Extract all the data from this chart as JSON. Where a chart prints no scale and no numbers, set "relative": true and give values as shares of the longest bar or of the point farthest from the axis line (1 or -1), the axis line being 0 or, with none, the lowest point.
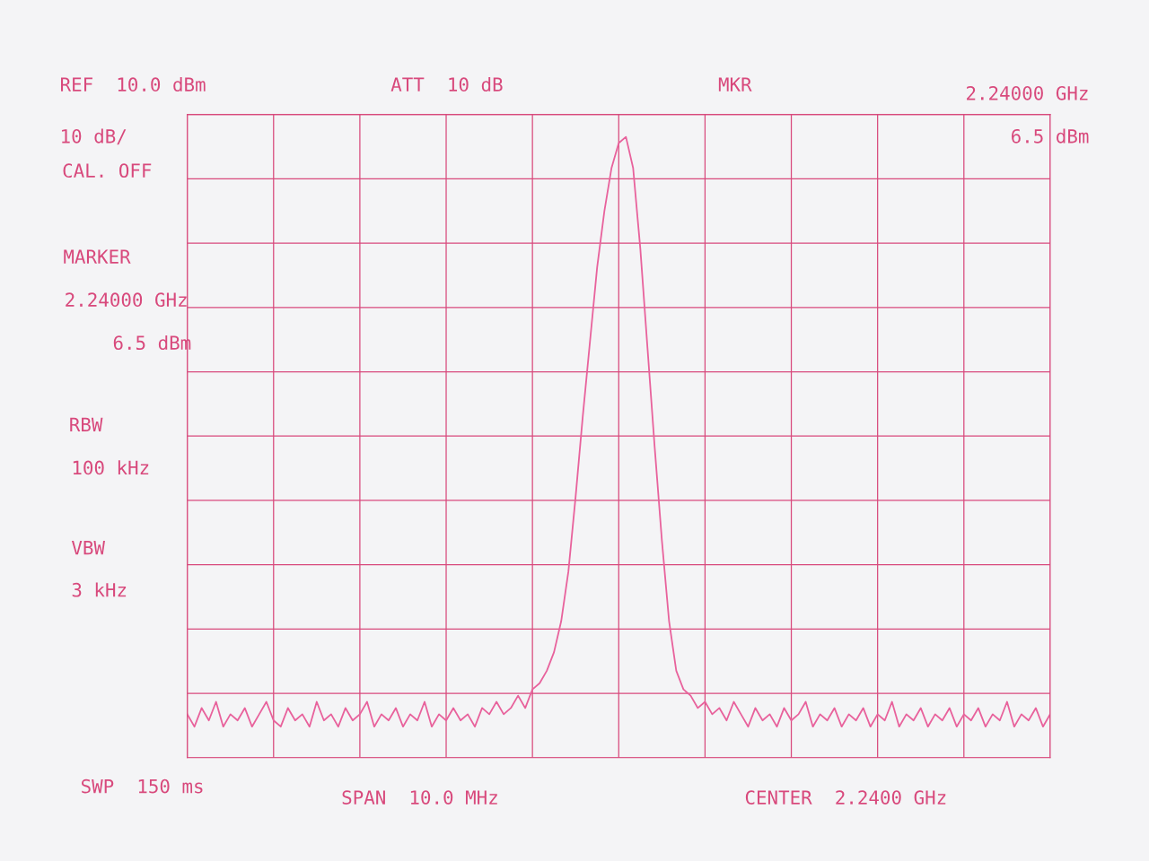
{
  "chart_data": {
    "type": "line",
    "relative": true,
    "grid": true,
    "legend": false,
    "categories": [
      null,
      null,
      null,
      null,
      null,
      null,
      null,
      null,
      null,
      null,
      null,
      null,
      null,
      null,
      null,
      null,
      null,
      null,
      null,
      null,
      null,
      null,
      null,
      null,
      null,
      null,
      null,
      null,
      null,
      null,
      null,
      null,
      null,
      null,
      null,
      null,
      null,
      null,
      null,
      null,
      null,
      null,
      null,
      null,
      null,
      null,
      null,
      null,
      null,
      null,
      null,
      null,
      null,
      null,
      null,
      null,
      null,
      null,
      null,
      null,
      null,
      null,
      null,
      null,
      null,
      null,
      null,
      null,
      null,
      null,
      null,
      null,
      null,
      null,
      null,
      null,
      null,
      null,
      null,
      null,
      null,
      null,
      null,
      null,
      null,
      null,
      null,
      null,
      null,
      null,
      null,
      null,
      null,
      null,
      null,
      null,
      null,
      null,
      null,
      null,
      null,
      null,
      null,
      null,
      null,
      null,
      null,
      null,
      null,
      null,
      null,
      null,
      null,
      null,
      null,
      null,
      null,
      null,
      null,
      null,
      null
    ],
    "series": [
      {
        "type": "line",
        "color": "#e8629c",
        "marker": "none",
        "line_style": "solid",
        "values": [
          0.07,
          0.05,
          0.08,
          0.06,
          0.09,
          0.05,
          0.07,
          0.06,
          0.08,
          0.05,
          0.07,
          0.09,
          0.06,
          0.05,
          0.08,
          0.06,
          0.07,
          0.05,
          0.09,
          0.06,
          0.07,
          0.05,
          0.08,
          0.06,
          0.07,
          0.09,
          0.05,
          0.07,
          0.06,
          0.08,
          0.05,
          0.07,
          0.06,
          0.09,
          0.05,
          0.07,
          0.06,
          0.08,
          0.06,
          0.07,
          0.05,
          0.08,
          0.07,
          0.09,
          0.07,
          0.08,
          0.1,
          0.08,
          0.11,
          0.12,
          0.14,
          0.17,
          0.22,
          0.3,
          0.42,
          0.55,
          0.67,
          0.79,
          0.88,
          0.95,
          0.99,
          1.0,
          0.95,
          0.82,
          0.66,
          0.5,
          0.35,
          0.22,
          0.14,
          0.11,
          0.1,
          0.08,
          0.09,
          0.07,
          0.08,
          0.06,
          0.09,
          0.07,
          0.05,
          0.08,
          0.06,
          0.07,
          0.05,
          0.08,
          0.06,
          0.07,
          0.09,
          0.05,
          0.07,
          0.06,
          0.08,
          0.05,
          0.07,
          0.06,
          0.08,
          0.05,
          0.07,
          0.06,
          0.09,
          0.05,
          0.07,
          0.06,
          0.08,
          0.05,
          0.07,
          0.06,
          0.08,
          0.05,
          0.07,
          0.06,
          0.08,
          0.05,
          0.07,
          0.06,
          0.09,
          0.05,
          0.07,
          0.06,
          0.08,
          0.05,
          0.07
        ]
      }
    ],
    "annotations": [
      "REF  10.0 dBm",
      "ATT  10 dB",
      "MKR",
      "2.24000 GHz",
      "6.5 dBm",
      "10 dB/",
      "CAL. OFF",
      "MARKER",
      "2.24000 GHz",
      "6.5 dBm",
      "RBW",
      "100 kHz",
      "VBW",
      "3 kHz",
      "SWP  150 ms",
      "SPAN  10.0 MHz",
      "CENTER  2.2400 GHz"
    ]
  }
}
